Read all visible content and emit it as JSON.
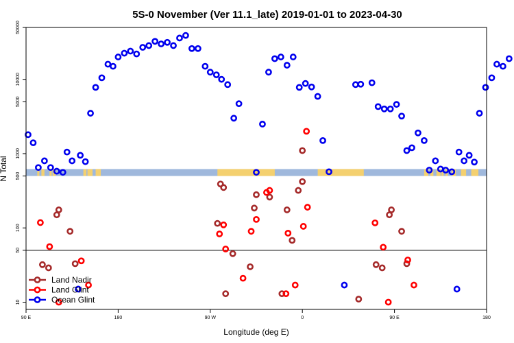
{
  "chart_data": {
    "type": "scatter",
    "title": "5S-0 November (Ver 11.1_late)   2019-01-01 to 2023-04-30",
    "xlabel": "Longitude (deg E)",
    "ylabel": "N Total",
    "x_axis": {
      "domain_start": 90,
      "domain_span": 450,
      "ticks": [
        {
          "pos": 90,
          "label": "90 E"
        },
        {
          "pos": 180,
          "label": "180"
        },
        {
          "pos": 270,
          "label": "90 W"
        },
        {
          "pos": 360,
          "label": "0"
        },
        {
          "pos": 450,
          "label": "90 E"
        },
        {
          "pos": 540,
          "label": "180"
        }
      ]
    },
    "y_axis": {
      "scale": "log",
      "range": [
        8,
        50000
      ],
      "ticks": [
        {
          "value": 10,
          "label": "10"
        },
        {
          "value": 50,
          "label": "50"
        },
        {
          "value": 100,
          "label": "100"
        },
        {
          "value": 500,
          "label": "500"
        },
        {
          "value": 1000,
          "label": "1000"
        },
        {
          "value": 5000,
          "label": "5000"
        },
        {
          "value": 10000,
          "label": "10000"
        },
        {
          "value": 50000,
          "label": "50000"
        }
      ],
      "reference_line": 50
    },
    "land_band": {
      "y_low": 500,
      "y_high": 620,
      "ocean_color": "#9fb8dc",
      "land_color": "#f4d06f",
      "land_segments": [
        [
          101,
          103
        ],
        [
          105,
          108
        ],
        [
          113,
          115
        ],
        [
          116,
          119
        ],
        [
          146,
          149
        ],
        [
          150,
          155
        ],
        [
          158,
          163
        ],
        [
          277,
          333
        ],
        [
          375,
          420
        ],
        [
          479,
          483
        ],
        [
          485,
          488
        ],
        [
          491,
          495
        ],
        [
          496,
          498
        ],
        [
          500,
          502
        ],
        [
          506,
          510
        ],
        [
          515,
          520
        ],
        [
          525,
          532
        ]
      ]
    },
    "series": [
      {
        "name": "Land Nadir",
        "color": "#a52a2a",
        "points": [
          [
            106,
            32
          ],
          [
            112,
            29
          ],
          [
            120,
            150
          ],
          [
            122,
            175
          ],
          [
            133,
            90
          ],
          [
            138,
            33
          ],
          [
            277,
            115
          ],
          [
            280,
            390
          ],
          [
            283,
            350
          ],
          [
            285,
            13
          ],
          [
            292,
            45
          ],
          [
            309,
            30
          ],
          [
            313,
            185
          ],
          [
            315,
            280
          ],
          [
            328,
            260
          ],
          [
            340,
            13
          ],
          [
            345,
            175
          ],
          [
            350,
            68
          ],
          [
            356,
            320
          ],
          [
            360,
            1100
          ],
          [
            360,
            420
          ],
          [
            415,
            11
          ],
          [
            432,
            32
          ],
          [
            438,
            29
          ],
          [
            445,
            150
          ],
          [
            447,
            175
          ],
          [
            457,
            90
          ],
          [
            462,
            33
          ]
        ]
      },
      {
        "name": "Land Glint",
        "color": "#ff0000",
        "points": [
          [
            104,
            118
          ],
          [
            113,
            56
          ],
          [
            122,
            10
          ],
          [
            144,
            36
          ],
          [
            151,
            17
          ],
          [
            279,
            83
          ],
          [
            283,
            110
          ],
          [
            285,
            52
          ],
          [
            302,
            21
          ],
          [
            310,
            90
          ],
          [
            315,
            130
          ],
          [
            325,
            300
          ],
          [
            328,
            320
          ],
          [
            344,
            13
          ],
          [
            346,
            85
          ],
          [
            353,
            17
          ],
          [
            361,
            105
          ],
          [
            364,
            2000
          ],
          [
            365,
            190
          ],
          [
            431,
            117
          ],
          [
            439,
            55
          ],
          [
            444,
            10
          ],
          [
            463,
            37
          ],
          [
            469,
            17
          ]
        ]
      },
      {
        "name": "Ocean Glint",
        "color": "#0000ee",
        "points": [
          [
            92,
            1800
          ],
          [
            97,
            1400
          ],
          [
            102,
            650
          ],
          [
            108,
            800
          ],
          [
            114,
            650
          ],
          [
            120,
            580
          ],
          [
            126,
            560
          ],
          [
            130,
            1050
          ],
          [
            135,
            800
          ],
          [
            141,
            15
          ],
          [
            143,
            950
          ],
          [
            148,
            780
          ],
          [
            153,
            3500
          ],
          [
            158,
            7800
          ],
          [
            164,
            10500
          ],
          [
            170,
            16000
          ],
          [
            175,
            15000
          ],
          [
            180,
            20000
          ],
          [
            186,
            22500
          ],
          [
            192,
            24000
          ],
          [
            198,
            22000
          ],
          [
            204,
            27000
          ],
          [
            210,
            28500
          ],
          [
            216,
            32500
          ],
          [
            222,
            30000
          ],
          [
            228,
            31500
          ],
          [
            234,
            28500
          ],
          [
            240,
            36000
          ],
          [
            246,
            39000
          ],
          [
            252,
            26000
          ],
          [
            258,
            26000
          ],
          [
            265,
            15000
          ],
          [
            270,
            12500
          ],
          [
            276,
            11500
          ],
          [
            281,
            10000
          ],
          [
            287,
            8500
          ],
          [
            293,
            3000
          ],
          [
            298,
            4700
          ],
          [
            315,
            560
          ],
          [
            321,
            2500
          ],
          [
            327,
            12500
          ],
          [
            333,
            19000
          ],
          [
            339,
            20000
          ],
          [
            345,
            15500
          ],
          [
            351,
            20000
          ],
          [
            357,
            7800
          ],
          [
            363,
            8800
          ],
          [
            369,
            7900
          ],
          [
            375,
            5900
          ],
          [
            380,
            1500
          ],
          [
            386,
            570
          ],
          [
            401,
            17
          ],
          [
            412,
            8500
          ],
          [
            417,
            8600
          ],
          [
            428,
            9000
          ],
          [
            434,
            4300
          ],
          [
            440,
            4000
          ],
          [
            446,
            4000
          ],
          [
            452,
            4600
          ],
          [
            457,
            3200
          ],
          [
            462,
            1100
          ],
          [
            467,
            1200
          ],
          [
            473,
            1900
          ],
          [
            479,
            1500
          ],
          [
            484,
            600
          ],
          [
            490,
            800
          ],
          [
            495,
            620
          ],
          [
            500,
            600
          ],
          [
            506,
            570
          ],
          [
            511,
            15
          ],
          [
            513,
            1050
          ],
          [
            518,
            800
          ],
          [
            523,
            950
          ],
          [
            528,
            770
          ],
          [
            533,
            3500
          ],
          [
            539,
            7800
          ],
          [
            545,
            10500
          ],
          [
            550,
            16000
          ],
          [
            556,
            15000
          ],
          [
            562,
            19000
          ]
        ]
      }
    ],
    "legend_position": "bottom-left"
  }
}
